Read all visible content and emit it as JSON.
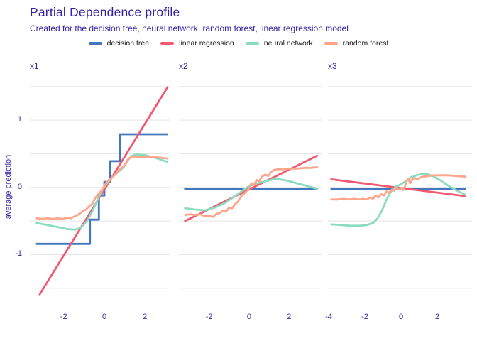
{
  "header": {
    "title": "Partial Dependence profile",
    "subtitle": "Created for the decision tree, neural network, random forest, linear regression model"
  },
  "legend": {
    "items": [
      {
        "id": "decision_tree",
        "label": "decision tree",
        "color": "#4378bf"
      },
      {
        "id": "linear_regression",
        "label": "linear regression",
        "color": "#f05a71"
      },
      {
        "id": "neural_network",
        "label": "neural network",
        "color": "#8bdcbe"
      },
      {
        "id": "random_forest",
        "label": "random forest",
        "color": "#ffa58c"
      }
    ]
  },
  "style": {
    "text_color": "#371ea3",
    "legend_text_color": "#1a1a1a",
    "gridline_color": "#e5e5e5",
    "background": "#ffffff",
    "line_width": 2.8
  },
  "chart_data": {
    "type": "line",
    "title": "Partial Dependence profile",
    "subtitle": "Created for the decision tree, neural network, random forest, linear regression model",
    "ylabel": "average prediction",
    "ylim": [
      -1.65,
      1.54
    ],
    "y_tick_values": [
      1,
      0,
      -1
    ],
    "y_gridline_values": [
      1.5,
      1,
      0.5,
      0,
      -0.5,
      -1,
      -1.5
    ],
    "legend_position": "top-center",
    "grid": "horizontal-only",
    "draw_order": [
      "decision_tree",
      "linear_regression",
      "neural_network",
      "random_forest"
    ],
    "facets": [
      {
        "id": "x1",
        "label": "x1",
        "x_domain": [
          -3.67,
          3.25
        ],
        "x_ticks": [
          -2,
          0,
          2
        ],
        "series": {
          "decision_tree": [
            [
              -3.33,
              -0.84
            ],
            [
              -0.71,
              -0.84
            ],
            [
              -0.71,
              -0.48
            ],
            [
              -0.27,
              -0.48
            ],
            [
              -0.27,
              -0.12
            ],
            [
              0,
              -0.12
            ],
            [
              0,
              0.08
            ],
            [
              0.29,
              0.08
            ],
            [
              0.29,
              0.39
            ],
            [
              0.76,
              0.39
            ],
            [
              0.76,
              0.79
            ],
            [
              3.1,
              0.79
            ]
          ],
          "linear_regression": [
            [
              -3.18,
              -1.59
            ],
            [
              3.11,
              1.49
            ]
          ],
          "neural_network": [
            [
              -3.33,
              -0.53
            ],
            [
              -2.8,
              -0.56
            ],
            [
              -2.3,
              -0.59
            ],
            [
              -1.8,
              -0.62
            ],
            [
              -1.45,
              -0.63
            ],
            [
              -1.15,
              -0.6
            ],
            [
              -0.85,
              -0.5
            ],
            [
              -0.55,
              -0.33
            ],
            [
              -0.3,
              -0.16
            ],
            [
              -0.1,
              -0.04
            ],
            [
              0.1,
              0.05
            ],
            [
              0.35,
              0.14
            ],
            [
              0.65,
              0.22
            ],
            [
              0.95,
              0.3
            ],
            [
              1.15,
              0.4
            ],
            [
              1.35,
              0.47
            ],
            [
              1.6,
              0.49
            ],
            [
              2,
              0.48
            ],
            [
              2.5,
              0.44
            ],
            [
              3.1,
              0.38
            ]
          ],
          "random_forest": [
            [
              -3.33,
              -0.46
            ],
            [
              -3.05,
              -0.47
            ],
            [
              -2.8,
              -0.46
            ],
            [
              -2.55,
              -0.47
            ],
            [
              -2.3,
              -0.46
            ],
            [
              -2.05,
              -0.47
            ],
            [
              -1.85,
              -0.45
            ],
            [
              -1.65,
              -0.46
            ],
            [
              -1.45,
              -0.43
            ],
            [
              -1.25,
              -0.4
            ],
            [
              -1.05,
              -0.35
            ],
            [
              -0.9,
              -0.33
            ],
            [
              -0.75,
              -0.28
            ],
            [
              -0.6,
              -0.25
            ],
            [
              -0.45,
              -0.16
            ],
            [
              -0.3,
              -0.1
            ],
            [
              -0.15,
              -0.05
            ],
            [
              0,
              0.02
            ],
            [
              0.12,
              0.08
            ],
            [
              0.25,
              0.12
            ],
            [
              0.4,
              0.15
            ],
            [
              0.55,
              0.2
            ],
            [
              0.7,
              0.25
            ],
            [
              0.85,
              0.29
            ],
            [
              1,
              0.33
            ],
            [
              1.15,
              0.41
            ],
            [
              1.3,
              0.45
            ],
            [
              1.5,
              0.46
            ],
            [
              1.8,
              0.45
            ],
            [
              2.1,
              0.46
            ],
            [
              2.5,
              0.45
            ],
            [
              2.8,
              0.44
            ],
            [
              3.1,
              0.43
            ]
          ]
        }
      },
      {
        "id": "x2",
        "label": "x2",
        "x_domain": [
          -3.51,
          3.62
        ],
        "x_ticks": [
          -2,
          0,
          2
        ],
        "series": {
          "decision_tree": [
            [
              -3.2,
              -0.02
            ],
            [
              3.4,
              -0.02
            ]
          ],
          "linear_regression": [
            [
              -3.2,
              -0.5
            ],
            [
              3.4,
              0.47
            ]
          ],
          "neural_network": [
            [
              -3.2,
              -0.31
            ],
            [
              -2.7,
              -0.33
            ],
            [
              -2.2,
              -0.34
            ],
            [
              -1.7,
              -0.3
            ],
            [
              -1.2,
              -0.23
            ],
            [
              -0.7,
              -0.13
            ],
            [
              -0.3,
              -0.04
            ],
            [
              0,
              0.02
            ],
            [
              0.4,
              0.06
            ],
            [
              0.8,
              0.09
            ],
            [
              1.2,
              0.12
            ],
            [
              1.5,
              0.12
            ],
            [
              1.9,
              0.1
            ],
            [
              2.4,
              0.06
            ],
            [
              2.9,
              0.02
            ],
            [
              3.4,
              -0.02
            ]
          ],
          "random_forest": [
            [
              -3.2,
              -0.41
            ],
            [
              -2.95,
              -0.4
            ],
            [
              -2.7,
              -0.41
            ],
            [
              -2.45,
              -0.4
            ],
            [
              -2.2,
              -0.43
            ],
            [
              -2,
              -0.42
            ],
            [
              -1.8,
              -0.44
            ],
            [
              -1.62,
              -0.39
            ],
            [
              -1.45,
              -0.38
            ],
            [
              -1.3,
              -0.34
            ],
            [
              -1.15,
              -0.36
            ],
            [
              -1,
              -0.3
            ],
            [
              -0.85,
              -0.31
            ],
            [
              -0.7,
              -0.25
            ],
            [
              -0.55,
              -0.21
            ],
            [
              -0.42,
              -0.14
            ],
            [
              -0.28,
              -0.1
            ],
            [
              -0.14,
              -0.06
            ],
            [
              0,
              -0.01
            ],
            [
              0.12,
              0.06
            ],
            [
              0.25,
              0.04
            ],
            [
              0.38,
              0.11
            ],
            [
              0.5,
              0.09
            ],
            [
              0.65,
              0.16
            ],
            [
              0.8,
              0.19
            ],
            [
              0.95,
              0.17
            ],
            [
              1.1,
              0.23
            ],
            [
              1.25,
              0.26
            ],
            [
              1.45,
              0.27
            ],
            [
              1.7,
              0.27
            ],
            [
              2,
              0.28
            ],
            [
              2.4,
              0.28
            ],
            [
              2.8,
              0.29
            ],
            [
              3.1,
              0.29
            ],
            [
              3.4,
              0.3
            ]
          ]
        }
      },
      {
        "id": "x3",
        "label": "x3",
        "x_domain": [
          -4.04,
          3.92
        ],
        "x_ticks": [
          -4,
          -2,
          0,
          2
        ],
        "series": {
          "decision_tree": [
            [
              -3.85,
              -0.02
            ],
            [
              3.55,
              -0.02
            ]
          ],
          "linear_regression": [
            [
              -3.85,
              0.12
            ],
            [
              3.55,
              -0.13
            ]
          ],
          "neural_network": [
            [
              -3.85,
              -0.55
            ],
            [
              -3.3,
              -0.56
            ],
            [
              -2.8,
              -0.57
            ],
            [
              -2.3,
              -0.57
            ],
            [
              -1.9,
              -0.56
            ],
            [
              -1.55,
              -0.53
            ],
            [
              -1.3,
              -0.46
            ],
            [
              -1.05,
              -0.34
            ],
            [
              -0.8,
              -0.18
            ],
            [
              -0.55,
              -0.06
            ],
            [
              -0.3,
              0.01
            ],
            [
              -0.05,
              0.04
            ],
            [
              0.25,
              0.09
            ],
            [
              0.55,
              0.15
            ],
            [
              0.85,
              0.18
            ],
            [
              1.15,
              0.2
            ],
            [
              1.45,
              0.2
            ],
            [
              1.8,
              0.16
            ],
            [
              2.2,
              0.1
            ],
            [
              2.7,
              0.01
            ],
            [
              3.1,
              -0.05
            ],
            [
              3.55,
              -0.11
            ]
          ],
          "random_forest": [
            [
              -3.85,
              -0.18
            ],
            [
              -3.5,
              -0.18
            ],
            [
              -3.2,
              -0.17
            ],
            [
              -2.9,
              -0.18
            ],
            [
              -2.6,
              -0.17
            ],
            [
              -2.35,
              -0.18
            ],
            [
              -2.1,
              -0.17
            ],
            [
              -1.9,
              -0.18
            ],
            [
              -1.7,
              -0.15
            ],
            [
              -1.55,
              -0.17
            ],
            [
              -1.4,
              -0.12
            ],
            [
              -1.25,
              -0.15
            ],
            [
              -1.1,
              -0.1
            ],
            [
              -0.95,
              -0.12
            ],
            [
              -0.8,
              -0.06
            ],
            [
              -0.65,
              -0.08
            ],
            [
              -0.5,
              -0.03
            ],
            [
              -0.38,
              -0.05
            ],
            [
              -0.25,
              -0.01
            ],
            [
              -0.12,
              -0.03
            ],
            [
              0,
              -0.01
            ],
            [
              0.1,
              -0.04
            ],
            [
              0.2,
              0
            ],
            [
              0.32,
              0.1
            ],
            [
              0.42,
              0.13
            ],
            [
              0.5,
              0.06
            ],
            [
              0.62,
              0.12
            ],
            [
              0.75,
              0.14
            ],
            [
              0.9,
              0.12
            ],
            [
              1.05,
              0.15
            ],
            [
              1.25,
              0.16
            ],
            [
              1.5,
              0.17
            ],
            [
              1.8,
              0.18
            ],
            [
              2.2,
              0.18
            ],
            [
              2.6,
              0.18
            ],
            [
              3,
              0.17
            ],
            [
              3.55,
              0.16
            ]
          ]
        }
      }
    ]
  }
}
